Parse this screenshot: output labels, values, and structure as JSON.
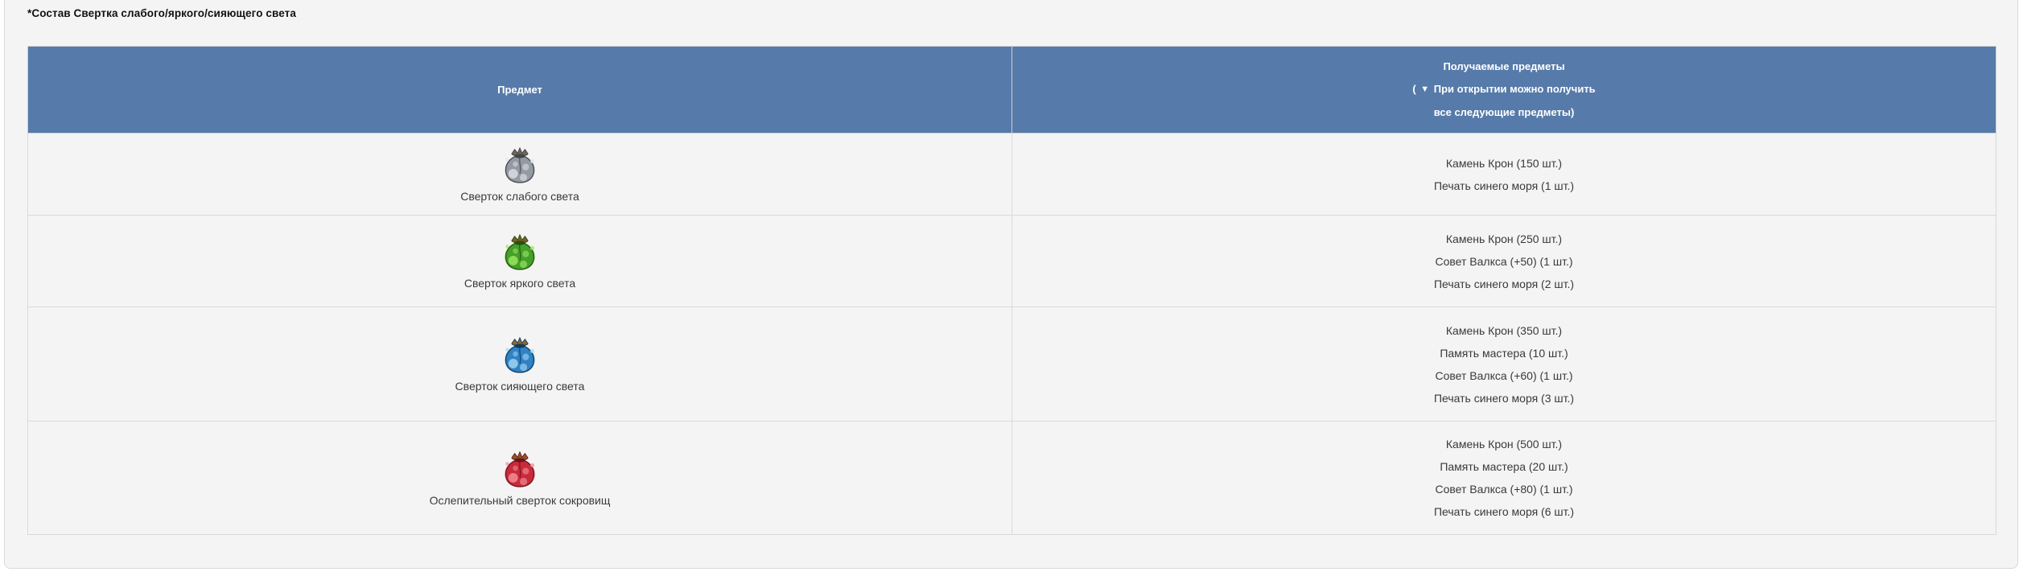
{
  "page": {
    "title": "*Состав Свертка слабого/яркого/сияющего света"
  },
  "colors": {
    "header_bg": "#567aa9",
    "header_text": "#ffffff",
    "panel_bg": "#f4f4f5",
    "border": "#d9d9d9",
    "body_text": "#3a3a3a"
  },
  "table": {
    "header": {
      "item_column": "Предмет",
      "rewards_line1": "Получаемые предметы",
      "note_open": "( ",
      "arrow_glyph": "▼",
      "note_line2": " При открытии можно получить",
      "note_line3": "все следующие предметы)"
    },
    "rows": [
      {
        "item": "Сверток слабого света",
        "icon": "pouch-gray-icon",
        "icon_colors": {
          "bag": "#949aa3",
          "hi": "#e2e7eb",
          "dark": "#42464d",
          "collar": "#6d6657",
          "glow": "#c9ced4"
        },
        "rewards": [
          "Камень Крон (150 шт.)",
          "Печать синего моря (1 шт.)"
        ]
      },
      {
        "item": "Сверток яркого света",
        "icon": "pouch-green-icon",
        "icon_colors": {
          "bag": "#44a02a",
          "hi": "#a5ec66",
          "dark": "#23520f",
          "collar": "#7c5c26",
          "glow": "#8ada52"
        },
        "rewards": [
          "Камень Крон (250 шт.)",
          "Совет Валкса (+50) (1 шт.)",
          "Печать синего моря (2 шт.)"
        ]
      },
      {
        "item": "Сверток сияющего света",
        "icon": "pouch-blue-icon",
        "icon_colors": {
          "bag": "#2f82c4",
          "hi": "#aedff7",
          "dark": "#153a60",
          "collar": "#8a6a2c",
          "glow": "#7ccaf2"
        },
        "rewards": [
          "Камень Крон (350 шт.)",
          "Память мастера (10 шт.)",
          "Совет Валкса (+60) (1 шт.)",
          "Печать синего моря (3 шт.)"
        ]
      },
      {
        "item": "Ослепительный сверток сокровищ",
        "icon": "pouch-red-icon",
        "icon_colors": {
          "bag": "#c92a3b",
          "hi": "#f59aa2",
          "dark": "#70121b",
          "collar": "#8a5a22",
          "glow": "#ef6d78"
        },
        "rewards": [
          "Камень Крон (500 шт.)",
          "Память мастера (20 шт.)",
          "Совет Валкса (+80) (1 шт.)",
          "Печать синего моря (6 шт.)"
        ]
      }
    ]
  }
}
